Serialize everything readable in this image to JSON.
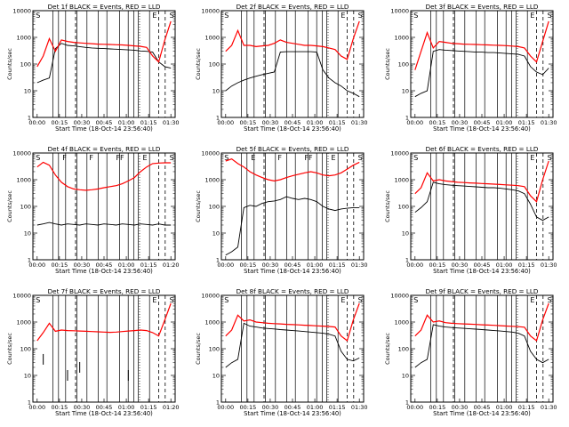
{
  "colors": {
    "events": "#000000",
    "lld": "#ff0000",
    "axes": "#000000"
  },
  "shared": {
    "xlabel": "Start Time (18-Oct-14 23:56:40)",
    "ylabel": "Counts/sec",
    "yticks": [
      "1",
      "10",
      "100",
      "1000",
      "10000"
    ],
    "xticks_a": [
      "00:00",
      "00:15",
      "00:30",
      "00:45",
      "01:00",
      "01:15",
      "01:30"
    ],
    "xticks_b": [
      "00:00",
      "00:15",
      "00:30",
      "00:45",
      "01:00",
      "01:15",
      "01:20"
    ]
  },
  "chart_data": [
    {
      "type": "line",
      "title": "Det 1f BLACK = Events, RED = LLD",
      "x_tick_labels": [
        "00:00",
        "00:15",
        "00:30",
        "00:45",
        "01:00",
        "01:15",
        "01:30"
      ],
      "yscale": "log",
      "ylim": [
        1,
        10000
      ],
      "markers": [
        "S",
        "E",
        "S"
      ],
      "series": [
        {
          "color": "black",
          "values": [
            20,
            25,
            30,
            380,
            600,
            500,
            480,
            450,
            420,
            400,
            390,
            380,
            370,
            360,
            350,
            340,
            330,
            310,
            300,
            280,
            120,
            80,
            70
          ]
        },
        {
          "color": "red",
          "values": [
            80,
            200,
            900,
            300,
            800,
            700,
            650,
            620,
            600,
            580,
            560,
            550,
            540,
            530,
            520,
            500,
            480,
            460,
            420,
            200,
            120,
            800,
            4000
          ]
        }
      ]
    },
    {
      "type": "line",
      "title": "Det 2f BLACK = Events, RED = LLD",
      "x_tick_labels": [
        "00:00",
        "00:15",
        "00:30",
        "00:45",
        "01:00",
        "01:15",
        "01:30"
      ],
      "yscale": "log",
      "ylim": [
        1,
        10000
      ],
      "markers": [
        "S",
        "E",
        "S"
      ],
      "series": [
        {
          "color": "black",
          "values": [
            10,
            15,
            20,
            25,
            30,
            35,
            40,
            45,
            50,
            280,
            290,
            290,
            290,
            290,
            290,
            280,
            60,
            30,
            20,
            15,
            10,
            8,
            6
          ]
        },
        {
          "color": "red",
          "values": [
            300,
            500,
            1800,
            500,
            500,
            450,
            480,
            500,
            600,
            800,
            650,
            600,
            550,
            500,
            500,
            480,
            450,
            400,
            350,
            200,
            150,
            900,
            4000
          ]
        }
      ]
    },
    {
      "type": "line",
      "title": "Det 3f BLACK = Events, RED = LLD",
      "x_tick_labels": [
        "00:00",
        "00:15",
        "00:30",
        "00:45",
        "01:00",
        "01:15",
        "01:30"
      ],
      "yscale": "log",
      "ylim": [
        1,
        10000
      ],
      "markers": [
        "S",
        "E",
        "S"
      ],
      "series": [
        {
          "color": "black",
          "values": [
            6,
            8,
            10,
            300,
            350,
            330,
            320,
            310,
            300,
            290,
            280,
            280,
            270,
            270,
            260,
            250,
            240,
            230,
            200,
            80,
            50,
            40,
            70
          ]
        },
        {
          "color": "red",
          "values": [
            60,
            300,
            1500,
            400,
            700,
            650,
            600,
            580,
            560,
            550,
            540,
            530,
            520,
            510,
            500,
            490,
            470,
            450,
            400,
            200,
            120,
            700,
            4000
          ]
        }
      ]
    },
    {
      "type": "line",
      "title": "Det 4f BLACK = Events, RED = LLD",
      "x_tick_labels": [
        "00:00",
        "00:15",
        "00:30",
        "00:45",
        "01:00",
        "01:15",
        "01:20"
      ],
      "yscale": "log",
      "ylim": [
        1,
        10000
      ],
      "markers": [
        "S",
        "F",
        "F",
        "FF",
        "E",
        "S"
      ],
      "series": [
        {
          "color": "black",
          "values": [
            20,
            22,
            25,
            22,
            20,
            22,
            21,
            20,
            22,
            21,
            20,
            22,
            21,
            20,
            22,
            21,
            20,
            22,
            21,
            20,
            22,
            20,
            20
          ]
        },
        {
          "color": "red",
          "values": [
            3000,
            4500,
            3500,
            1500,
            800,
            550,
            450,
            420,
            400,
            420,
            450,
            500,
            550,
            600,
            700,
            900,
            1200,
            2000,
            3000,
            4000,
            4200,
            4300,
            4300
          ]
        }
      ]
    },
    {
      "type": "line",
      "title": "Det 5f BLACK = Events, RED = LLD",
      "x_tick_labels": [
        "00:00",
        "00:15",
        "00:30",
        "00:45",
        "01:00",
        "01:15",
        "01:30"
      ],
      "yscale": "log",
      "ylim": [
        1,
        10000
      ],
      "markers": [
        "S",
        "E",
        "F",
        "FF",
        "E",
        "S"
      ],
      "series": [
        {
          "color": "black",
          "values": [
            1.5,
            2,
            3,
            90,
            110,
            100,
            130,
            150,
            160,
            180,
            230,
            200,
            180,
            200,
            180,
            150,
            100,
            80,
            70,
            80,
            85,
            90,
            90
          ]
        },
        {
          "color": "red",
          "values": [
            5000,
            6000,
            4000,
            3000,
            2000,
            1500,
            1200,
            1000,
            900,
            1000,
            1200,
            1400,
            1600,
            1800,
            2000,
            1800,
            1500,
            1400,
            1500,
            1800,
            2500,
            3500,
            4500
          ]
        }
      ]
    },
    {
      "type": "line",
      "title": "Det 6f BLACK = Events, RED = LLD",
      "x_tick_labels": [
        "00:00",
        "00:15",
        "00:30",
        "00:45",
        "01:00",
        "01:15",
        "01:30"
      ],
      "yscale": "log",
      "ylim": [
        1,
        10000
      ],
      "markers": [
        "S",
        "E",
        "S"
      ],
      "series": [
        {
          "color": "black",
          "values": [
            60,
            90,
            150,
            800,
            700,
            650,
            620,
            600,
            580,
            560,
            540,
            520,
            500,
            500,
            480,
            450,
            420,
            380,
            300,
            120,
            40,
            30,
            40
          ]
        },
        {
          "color": "red",
          "values": [
            300,
            500,
            1800,
            900,
            1000,
            900,
            850,
            800,
            780,
            760,
            740,
            720,
            700,
            680,
            660,
            640,
            620,
            600,
            550,
            250,
            150,
            1000,
            5000
          ]
        }
      ]
    },
    {
      "type": "line",
      "title": "Det 7f BLACK = Events, RED = LLD",
      "x_tick_labels": [
        "00:00",
        "00:15",
        "00:30",
        "00:45",
        "01:00",
        "01:15",
        "01:20"
      ],
      "yscale": "log",
      "ylim": [
        1,
        10000
      ],
      "markers": [
        "S",
        "E",
        "S"
      ],
      "series": [
        {
          "color": "black",
          "values": [
            null,
            40,
            null,
            null,
            null,
            10,
            null,
            20,
            null,
            null,
            null,
            null,
            null,
            null,
            null,
            10,
            null,
            null,
            null,
            null,
            null,
            null,
            null
          ]
        },
        {
          "color": "red",
          "values": [
            200,
            400,
            900,
            450,
            500,
            480,
            470,
            460,
            450,
            440,
            430,
            420,
            410,
            420,
            440,
            460,
            480,
            500,
            480,
            400,
            300,
            1200,
            5000
          ]
        }
      ]
    },
    {
      "type": "line",
      "title": "Det 8f BLACK = Events, RED = LLD",
      "x_tick_labels": [
        "00:00",
        "00:15",
        "00:30",
        "00:45",
        "01:00",
        "01:15",
        "01:30"
      ],
      "yscale": "log",
      "ylim": [
        1,
        10000
      ],
      "markers": [
        "S",
        "E",
        "S"
      ],
      "series": [
        {
          "color": "black",
          "values": [
            20,
            30,
            40,
            900,
            700,
            650,
            600,
            570,
            550,
            520,
            500,
            480,
            460,
            440,
            420,
            400,
            380,
            350,
            300,
            80,
            40,
            35,
            45
          ]
        },
        {
          "color": "red",
          "values": [
            300,
            500,
            1800,
            1100,
            1200,
            1000,
            950,
            900,
            870,
            850,
            820,
            800,
            780,
            760,
            740,
            720,
            700,
            680,
            650,
            300,
            200,
            1200,
            5000
          ]
        }
      ]
    },
    {
      "type": "line",
      "title": "Det 9f BLACK = Events, RED = LLD",
      "x_tick_labels": [
        "00:00",
        "00:15",
        "00:30",
        "00:45",
        "01:00",
        "01:15",
        "01:30"
      ],
      "yscale": "log",
      "ylim": [
        1,
        10000
      ],
      "markers": [
        "S",
        "E",
        "S"
      ],
      "series": [
        {
          "color": "black",
          "values": [
            20,
            30,
            40,
            800,
            700,
            650,
            620,
            600,
            580,
            560,
            540,
            520,
            500,
            480,
            460,
            440,
            420,
            380,
            300,
            80,
            40,
            30,
            40
          ]
        },
        {
          "color": "red",
          "values": [
            300,
            500,
            1800,
            1000,
            1100,
            950,
            900,
            870,
            850,
            830,
            810,
            790,
            770,
            750,
            730,
            710,
            690,
            670,
            640,
            300,
            200,
            1200,
            5000
          ]
        }
      ]
    }
  ]
}
